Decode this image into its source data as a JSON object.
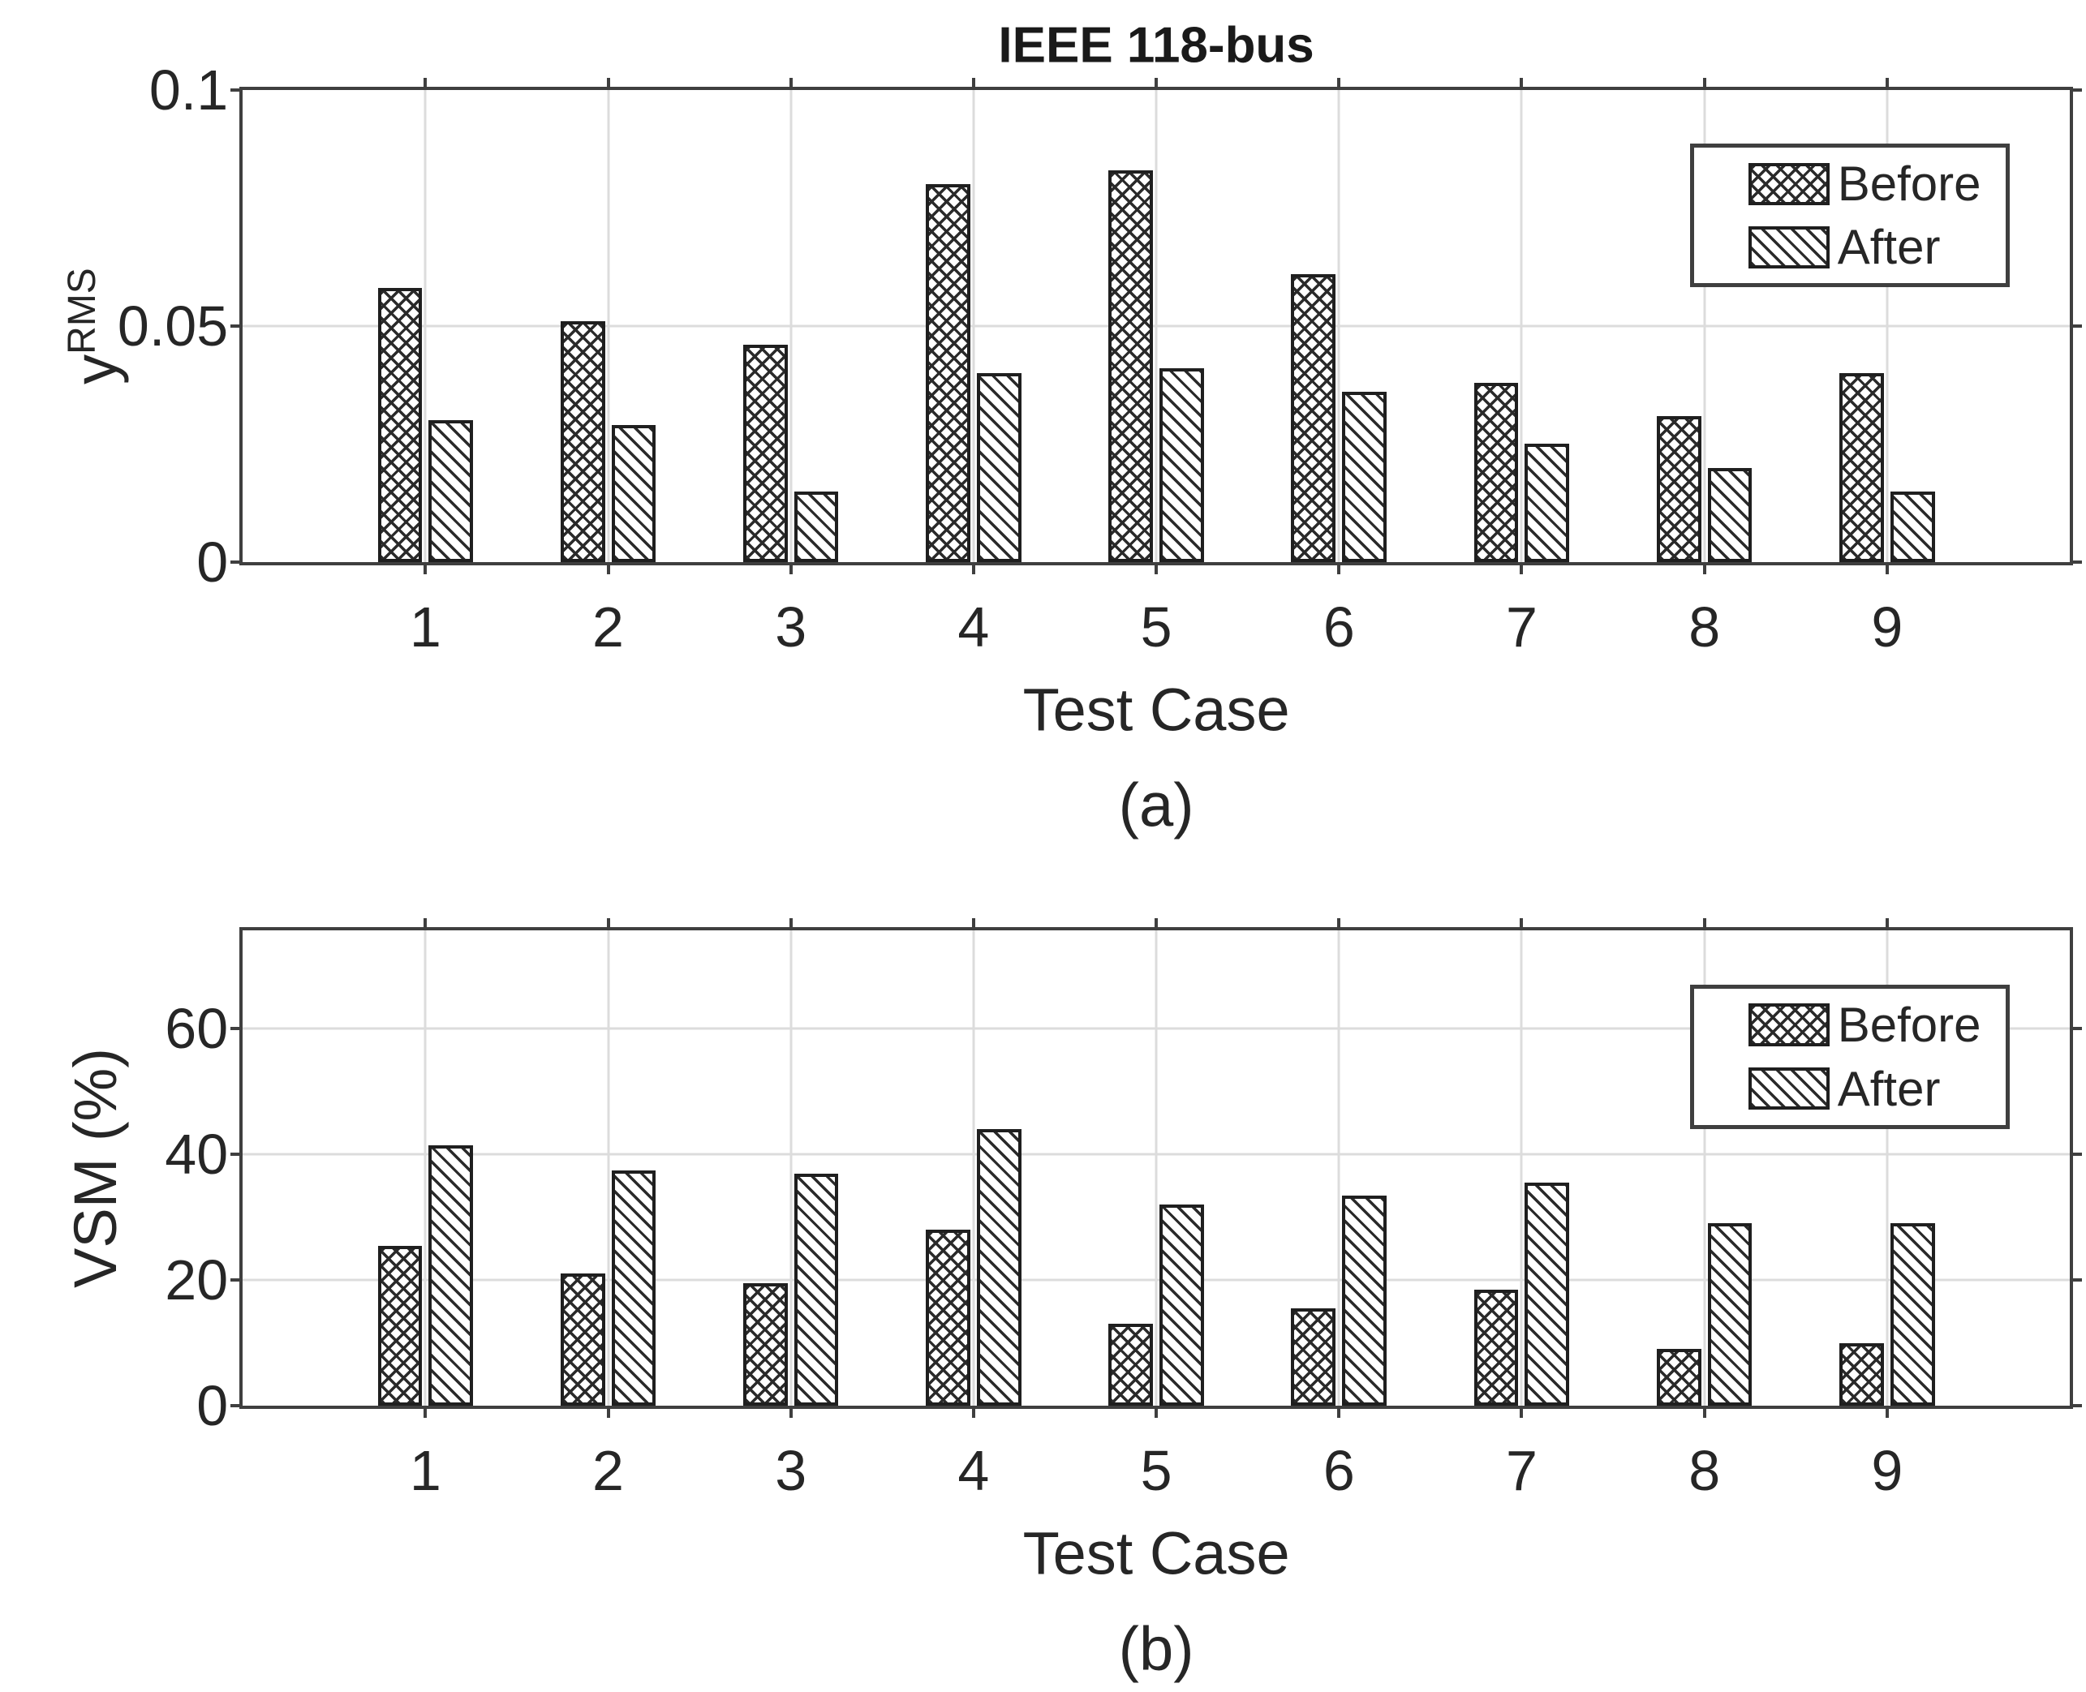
{
  "figure": {
    "background": "#ffffff",
    "text_color": "#262626",
    "axis_color": "#3f3f3f",
    "gridline_color": "#dcdcdc",
    "bar_edge_color": "#1f1f1f",
    "hatch_color": "#2a2a2a"
  },
  "chart_data": [
    {
      "type": "bar",
      "panel": "a",
      "panel_label": "(a)",
      "title": "IEEE 118-bus",
      "xlabel": "Test Case",
      "ylabel": "y^RMS",
      "ylabel_base": "y",
      "ylabel_sup": "RMS",
      "categories": [
        "1",
        "2",
        "3",
        "4",
        "5",
        "6",
        "7",
        "8",
        "9"
      ],
      "series": [
        {
          "name": "Before",
          "hatch": "crosshatch",
          "values": [
            0.058,
            0.051,
            0.046,
            0.08,
            0.083,
            0.061,
            0.038,
            0.031,
            0.04
          ]
        },
        {
          "name": "After",
          "hatch": "diagonal",
          "values": [
            0.03,
            0.029,
            0.015,
            0.04,
            0.041,
            0.036,
            0.025,
            0.02,
            0.015
          ]
        }
      ],
      "yticks": [
        0,
        0.05,
        0.1
      ],
      "ytick_labels": [
        "0",
        "0.05",
        "0.1"
      ],
      "ylim": [
        0,
        0.1
      ],
      "xlim": [
        0,
        10
      ],
      "grid": true,
      "legend_position": "top-right"
    },
    {
      "type": "bar",
      "panel": "b",
      "panel_label": "(b)",
      "title": "",
      "xlabel": "Test Case",
      "ylabel": "VSM (%)",
      "ylabel_base": "VSM (%)",
      "ylabel_sup": "",
      "categories": [
        "1",
        "2",
        "3",
        "4",
        "5",
        "6",
        "7",
        "8",
        "9"
      ],
      "series": [
        {
          "name": "Before",
          "hatch": "crosshatch",
          "values": [
            25.5,
            21,
            19.5,
            28,
            13,
            15.5,
            18.5,
            9,
            10
          ]
        },
        {
          "name": "After",
          "hatch": "diagonal",
          "values": [
            41.5,
            37.5,
            37,
            44,
            32,
            33.5,
            35.5,
            29,
            29
          ]
        }
      ],
      "yticks": [
        0,
        20,
        40,
        60
      ],
      "ytick_labels": [
        "0",
        "20",
        "40",
        "60"
      ],
      "ylim": [
        0,
        75.7
      ],
      "xlim": [
        0,
        10
      ],
      "grid": true,
      "legend_position": "top-right"
    }
  ]
}
